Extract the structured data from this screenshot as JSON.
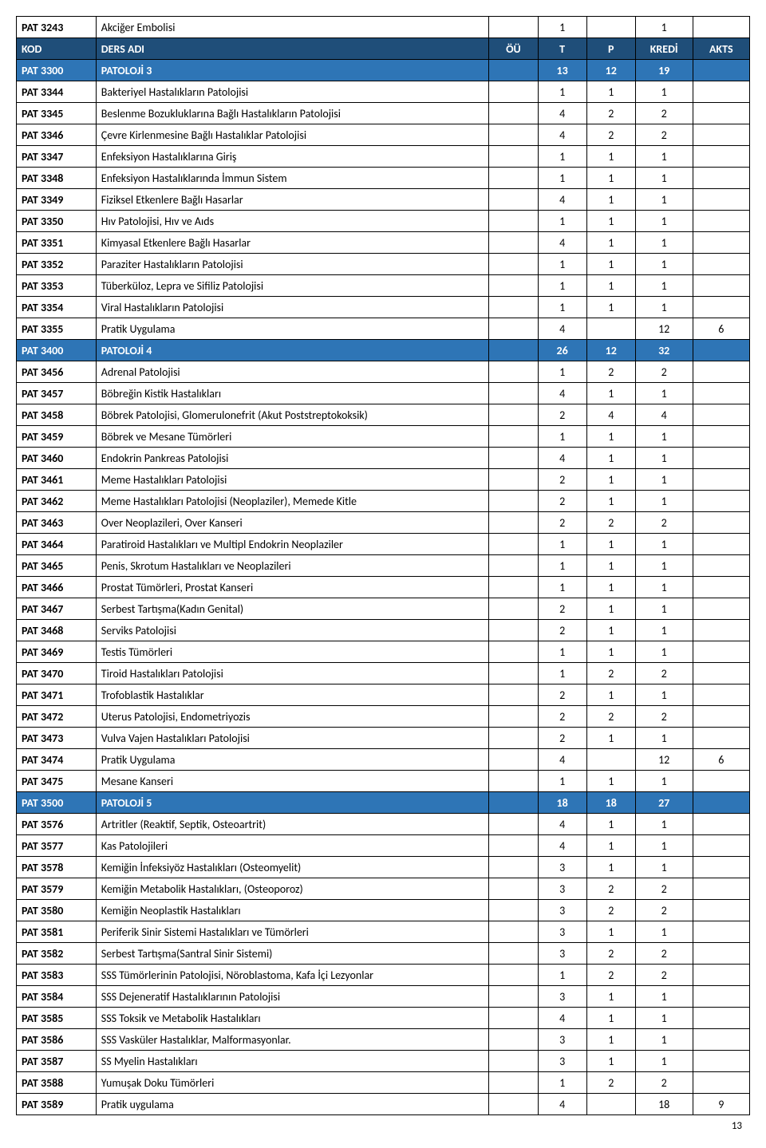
{
  "header": {
    "col_code": "KOD",
    "col_name": "DERS ADI",
    "col_ou": "ÖÜ",
    "col_t": "T",
    "col_p": "P",
    "col_kredi": "KREDİ",
    "col_akts": "AKTS"
  },
  "colors": {
    "header_bg": "#1f4e79",
    "section_bg": "#2e75b6",
    "text_light": "#ffffff",
    "border": "#000000",
    "bg": "#ffffff"
  },
  "rows": [
    {
      "type": "data",
      "code": "PAT 3243",
      "name": "Akciğer Embolisi",
      "ou": "",
      "t": "1",
      "p": "",
      "kredi": "1",
      "akts": ""
    },
    {
      "type": "header"
    },
    {
      "type": "section",
      "code": "PAT 3300",
      "name": "PATOLOJİ 3",
      "ou": "",
      "t": "13",
      "p": "12",
      "kredi": "19",
      "akts": ""
    },
    {
      "type": "data",
      "code": "PAT 3344",
      "name": "Bakteriyel Hastalıkların Patolojisi",
      "ou": "",
      "t": "1",
      "p": "1",
      "kredi": "1",
      "akts": ""
    },
    {
      "type": "data",
      "code": "PAT 3345",
      "name": "Beslenme Bozukluklarına Bağlı Hastalıkların Patolojisi",
      "ou": "",
      "t": "4",
      "p": "2",
      "kredi": "2",
      "akts": ""
    },
    {
      "type": "data",
      "code": "PAT 3346",
      "name": "Çevre Kirlenmesine Bağlı Hastalıklar Patolojisi",
      "ou": "",
      "t": "4",
      "p": "2",
      "kredi": "2",
      "akts": ""
    },
    {
      "type": "data",
      "code": "PAT 3347",
      "name": "Enfeksiyon Hastalıklarına Giriş",
      "ou": "",
      "t": "1",
      "p": "1",
      "kredi": "1",
      "akts": ""
    },
    {
      "type": "data",
      "code": "PAT 3348",
      "name": "Enfeksiyon Hastalıklarında İmmun Sistem",
      "ou": "",
      "t": "1",
      "p": "1",
      "kredi": "1",
      "akts": ""
    },
    {
      "type": "data",
      "code": "PAT 3349",
      "name": "Fiziksel Etkenlere Bağlı Hasarlar",
      "ou": "",
      "t": "4",
      "p": "1",
      "kredi": "1",
      "akts": ""
    },
    {
      "type": "data",
      "code": "PAT 3350",
      "name": "Hıv Patolojisi, Hıv ve Aıds",
      "ou": "",
      "t": "1",
      "p": "1",
      "kredi": "1",
      "akts": ""
    },
    {
      "type": "data",
      "code": "PAT 3351",
      "name": "Kimyasal Etkenlere Bağlı Hasarlar",
      "ou": "",
      "t": "4",
      "p": "1",
      "kredi": "1",
      "akts": ""
    },
    {
      "type": "data",
      "code": "PAT 3352",
      "name": "Paraziter Hastalıkların Patolojisi",
      "ou": "",
      "t": "1",
      "p": "1",
      "kredi": "1",
      "akts": ""
    },
    {
      "type": "data",
      "code": "PAT 3353",
      "name": "Tüberküloz, Lepra ve Sifiliz Patolojisi",
      "ou": "",
      "t": "1",
      "p": "1",
      "kredi": "1",
      "akts": ""
    },
    {
      "type": "data",
      "code": "PAT 3354",
      "name": "Viral Hastalıkların Patolojisi",
      "ou": "",
      "t": "1",
      "p": "1",
      "kredi": "1",
      "akts": ""
    },
    {
      "type": "data",
      "code": "PAT 3355",
      "name": "Pratik Uygulama",
      "ou": "",
      "t": "4",
      "p": "",
      "kredi": "12",
      "akts": "6"
    },
    {
      "type": "section",
      "code": "PAT 3400",
      "name": "PATOLOJİ 4",
      "ou": "",
      "t": "26",
      "p": "12",
      "kredi": "32",
      "akts": ""
    },
    {
      "type": "data",
      "code": "PAT 3456",
      "name": "Adrenal Patolojisi",
      "ou": "",
      "t": "1",
      "p": "2",
      "kredi": "2",
      "akts": ""
    },
    {
      "type": "data",
      "code": "PAT 3457",
      "name": "Böbreğin Kistik Hastalıkları",
      "ou": "",
      "t": "4",
      "p": "1",
      "kredi": "1",
      "akts": ""
    },
    {
      "type": "data",
      "code": "PAT 3458",
      "name": "Böbrek Patolojisi, Glomerulonefrit (Akut Poststreptokoksik)",
      "ou": "",
      "t": "2",
      "p": "4",
      "kredi": "4",
      "akts": ""
    },
    {
      "type": "data",
      "code": "PAT 3459",
      "name": "Böbrek ve Mesane Tümörleri",
      "ou": "",
      "t": "1",
      "p": "1",
      "kredi": "1",
      "akts": ""
    },
    {
      "type": "data",
      "code": "PAT 3460",
      "name": "Endokrin Pankreas Patolojisi",
      "ou": "",
      "t": "4",
      "p": "1",
      "kredi": "1",
      "akts": ""
    },
    {
      "type": "data",
      "code": "PAT 3461",
      "name": "Meme Hastalıkları Patolojisi",
      "ou": "",
      "t": "2",
      "p": "1",
      "kredi": "1",
      "akts": ""
    },
    {
      "type": "data",
      "code": "PAT 3462",
      "name": "Meme Hastalıkları Patolojisi (Neoplaziler), Memede Kitle",
      "ou": "",
      "t": "2",
      "p": "1",
      "kredi": "1",
      "akts": ""
    },
    {
      "type": "data",
      "code": "PAT 3463",
      "name": "Over Neoplazileri, Over Kanseri",
      "ou": "",
      "t": "2",
      "p": "2",
      "kredi": "2",
      "akts": ""
    },
    {
      "type": "data",
      "code": "PAT 3464",
      "name": "Paratiroid Hastalıkları ve Multipl Endokrin Neoplaziler",
      "ou": "",
      "t": "1",
      "p": "1",
      "kredi": "1",
      "akts": ""
    },
    {
      "type": "data",
      "code": "PAT 3465",
      "name": "Penis, Skrotum Hastalıkları ve Neoplazileri",
      "ou": "",
      "t": "1",
      "p": "1",
      "kredi": "1",
      "akts": ""
    },
    {
      "type": "data",
      "code": "PAT 3466",
      "name": "Prostat Tümörleri, Prostat Kanseri",
      "ou": "",
      "t": "1",
      "p": "1",
      "kredi": "1",
      "akts": ""
    },
    {
      "type": "data",
      "code": "PAT 3467",
      "name": "Serbest Tartışma(Kadın Genital)",
      "ou": "",
      "t": "2",
      "p": "1",
      "kredi": "1",
      "akts": ""
    },
    {
      "type": "data",
      "code": "PAT 3468",
      "name": "Serviks Patolojisi",
      "ou": "",
      "t": "2",
      "p": "1",
      "kredi": "1",
      "akts": ""
    },
    {
      "type": "data",
      "code": "PAT 3469",
      "name": "Testis Tümörleri",
      "ou": "",
      "t": "1",
      "p": "1",
      "kredi": "1",
      "akts": ""
    },
    {
      "type": "data",
      "code": "PAT 3470",
      "name": "Tiroid Hastalıkları Patolojisi",
      "ou": "",
      "t": "1",
      "p": "2",
      "kredi": "2",
      "akts": ""
    },
    {
      "type": "data",
      "code": "PAT 3471",
      "name": "Trofoblastik Hastalıklar",
      "ou": "",
      "t": "2",
      "p": "1",
      "kredi": "1",
      "akts": ""
    },
    {
      "type": "data",
      "code": "PAT 3472",
      "name": "Uterus Patolojisi, Endometriyozis",
      "ou": "",
      "t": "2",
      "p": "2",
      "kredi": "2",
      "akts": ""
    },
    {
      "type": "data",
      "code": "PAT 3473",
      "name": "Vulva Vajen Hastalıkları Patolojisi",
      "ou": "",
      "t": "2",
      "p": "1",
      "kredi": "1",
      "akts": ""
    },
    {
      "type": "data",
      "code": "PAT 3474",
      "name": "Pratik Uygulama",
      "ou": "",
      "t": "4",
      "p": "",
      "kredi": "12",
      "akts": "6"
    },
    {
      "type": "data",
      "code": "PAT 3475",
      "name": "Mesane Kanseri",
      "ou": "",
      "t": "1",
      "p": "1",
      "kredi": "1",
      "akts": ""
    },
    {
      "type": "section",
      "code": "PAT 3500",
      "name": "PATOLOJİ 5",
      "ou": "",
      "t": "18",
      "p": "18",
      "kredi": "27",
      "akts": ""
    },
    {
      "type": "data",
      "code": "PAT 3576",
      "name": "Artritler (Reaktif, Septik,  Osteoartrit)",
      "ou": "",
      "t": "4",
      "p": "1",
      "kredi": "1",
      "akts": ""
    },
    {
      "type": "data",
      "code": "PAT 3577",
      "name": "Kas Patolojileri",
      "ou": "",
      "t": "4",
      "p": "1",
      "kredi": "1",
      "akts": ""
    },
    {
      "type": "data",
      "code": "PAT 3578",
      "name": "Kemiğin İnfeksiyöz Hastalıkları (Osteomyelit)",
      "ou": "",
      "t": "3",
      "p": "1",
      "kredi": "1",
      "akts": ""
    },
    {
      "type": "data",
      "code": "PAT 3579",
      "name": "Kemiğin Metabolik Hastalıkları, (Osteoporoz)",
      "ou": "",
      "t": "3",
      "p": "2",
      "kredi": "2",
      "akts": ""
    },
    {
      "type": "data",
      "code": "PAT 3580",
      "name": "Kemiğin Neoplastik Hastalıkları",
      "ou": "",
      "t": "3",
      "p": "2",
      "kredi": "2",
      "akts": ""
    },
    {
      "type": "data",
      "code": "PAT 3581",
      "name": "Periferik Sinir Sistemi Hastalıkları ve Tümörleri",
      "ou": "",
      "t": "3",
      "p": "1",
      "kredi": "1",
      "akts": ""
    },
    {
      "type": "data",
      "code": "PAT 3582",
      "name": "Serbest Tartışma(Santral Sinir Sistemi)",
      "ou": "",
      "t": "3",
      "p": "2",
      "kredi": "2",
      "akts": ""
    },
    {
      "type": "data",
      "code": "PAT 3583",
      "name": "SSS Tümörlerinin Patolojisi, Nöroblastoma, Kafa İçi Lezyonlar",
      "ou": "",
      "t": "1",
      "p": "2",
      "kredi": "2",
      "akts": ""
    },
    {
      "type": "data",
      "code": "PAT 3584",
      "name": "SSS Dejeneratif Hastalıklarının Patolojisi",
      "ou": "",
      "t": "3",
      "p": "1",
      "kredi": "1",
      "akts": ""
    },
    {
      "type": "data",
      "code": "PAT 3585",
      "name": "SSS Toksik ve Metabolik Hastalıkları",
      "ou": "",
      "t": "4",
      "p": "1",
      "kredi": "1",
      "akts": ""
    },
    {
      "type": "data",
      "code": "PAT 3586",
      "name": "SSS Vasküler Hastalıklar, Malformasyonlar.",
      "ou": "",
      "t": "3",
      "p": "1",
      "kredi": "1",
      "akts": ""
    },
    {
      "type": "data",
      "code": "PAT 3587",
      "name": "SS Myelin Hastalıkları",
      "ou": "",
      "t": "3",
      "p": "1",
      "kredi": "1",
      "akts": ""
    },
    {
      "type": "data",
      "code": "PAT 3588",
      "name": "Yumuşak Doku Tümörleri",
      "ou": "",
      "t": "1",
      "p": "2",
      "kredi": "2",
      "akts": ""
    },
    {
      "type": "data",
      "code": "PAT 3589",
      "name": "Pratik uygulama",
      "ou": "",
      "t": "4",
      "p": "",
      "kredi": "18",
      "akts": "9"
    }
  ],
  "page_number": "13"
}
